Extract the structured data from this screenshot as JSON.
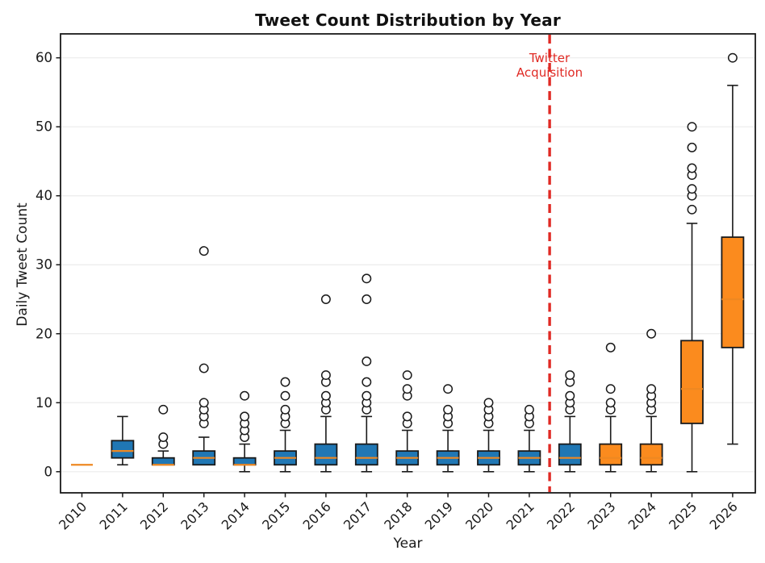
{
  "chart_data": {
    "type": "boxplot",
    "title": "Tweet Count Distribution by Year",
    "xlabel": "Year",
    "ylabel": "Daily Tweet Count",
    "categories": [
      "2010",
      "2011",
      "2012",
      "2013",
      "2014",
      "2015",
      "2016",
      "2017",
      "2018",
      "2019",
      "2020",
      "2021",
      "2022",
      "2023",
      "2024",
      "2025",
      "2026"
    ],
    "y_ticks": [
      0,
      10,
      20,
      30,
      40,
      50,
      60
    ],
    "ylim": [
      -3.1,
      63.5
    ],
    "grid": "horizontal-only",
    "legend": "none",
    "boxes": [
      {
        "year": "2010",
        "period": "pre",
        "whislo": 1,
        "q1": 1,
        "med": 1,
        "q3": 1,
        "whishi": 1,
        "fliers": []
      },
      {
        "year": "2011",
        "period": "pre",
        "whislo": 1,
        "q1": 2,
        "med": 3,
        "q3": 4.5,
        "whishi": 8,
        "fliers": []
      },
      {
        "year": "2012",
        "period": "pre",
        "whislo": 1,
        "q1": 1,
        "med": 1,
        "q3": 2,
        "whishi": 3,
        "fliers": [
          4,
          5,
          9
        ]
      },
      {
        "year": "2013",
        "period": "pre",
        "whislo": 1,
        "q1": 1,
        "med": 2,
        "q3": 3,
        "whishi": 5,
        "fliers": [
          7,
          8,
          9,
          10,
          15,
          32
        ]
      },
      {
        "year": "2014",
        "period": "pre",
        "whislo": 0,
        "q1": 1,
        "med": 1,
        "q3": 2,
        "whishi": 4,
        "fliers": [
          5,
          6,
          7,
          8,
          11
        ]
      },
      {
        "year": "2015",
        "period": "pre",
        "whislo": 0,
        "q1": 1,
        "med": 2,
        "q3": 3,
        "whishi": 6,
        "fliers": [
          7,
          8,
          9,
          11,
          13
        ]
      },
      {
        "year": "2016",
        "period": "pre",
        "whislo": 0,
        "q1": 1,
        "med": 2,
        "q3": 4,
        "whishi": 8,
        "fliers": [
          9,
          10,
          11,
          13,
          14,
          25
        ]
      },
      {
        "year": "2017",
        "period": "pre",
        "whislo": 0,
        "q1": 1,
        "med": 2,
        "q3": 4,
        "whishi": 8,
        "fliers": [
          9,
          10,
          11,
          13,
          16,
          25,
          28
        ]
      },
      {
        "year": "2018",
        "period": "pre",
        "whislo": 0,
        "q1": 1,
        "med": 2,
        "q3": 3,
        "whishi": 6,
        "fliers": [
          7,
          8,
          11,
          12,
          14
        ]
      },
      {
        "year": "2019",
        "period": "pre",
        "whislo": 0,
        "q1": 1,
        "med": 2,
        "q3": 3,
        "whishi": 6,
        "fliers": [
          7,
          8,
          9,
          12
        ]
      },
      {
        "year": "2020",
        "period": "pre",
        "whislo": 0,
        "q1": 1,
        "med": 2,
        "q3": 3,
        "whishi": 6,
        "fliers": [
          7,
          8,
          9,
          10
        ]
      },
      {
        "year": "2021",
        "period": "pre",
        "whislo": 0,
        "q1": 1,
        "med": 2,
        "q3": 3,
        "whishi": 6,
        "fliers": [
          7,
          8,
          9
        ]
      },
      {
        "year": "2022",
        "period": "pre",
        "whislo": 0,
        "q1": 1,
        "med": 2,
        "q3": 4,
        "whishi": 8,
        "fliers": [
          9,
          10,
          11,
          13,
          14
        ]
      },
      {
        "year": "2023",
        "period": "post",
        "whislo": 0,
        "q1": 1,
        "med": 2,
        "q3": 4,
        "whishi": 8,
        "fliers": [
          9,
          10,
          12,
          18
        ]
      },
      {
        "year": "2024",
        "period": "post",
        "whislo": 0,
        "q1": 1,
        "med": 2,
        "q3": 4,
        "whishi": 8,
        "fliers": [
          9,
          10,
          11,
          12,
          20
        ]
      },
      {
        "year": "2025",
        "period": "post",
        "whislo": 0,
        "q1": 7,
        "med": 12,
        "q3": 19,
        "whishi": 36,
        "fliers": [
          38,
          40,
          41,
          43,
          44,
          47,
          50
        ]
      },
      {
        "year": "2026",
        "period": "post",
        "whislo": 4,
        "q1": 18,
        "med": 25,
        "q3": 34,
        "whishi": 56,
        "fliers": [
          60
        ]
      }
    ],
    "event_line": {
      "label_line1": "Twitter",
      "label_line2": "Acquisition",
      "year_position": 2021.5
    },
    "colors": {
      "box_fill_pre": "#2077b4",
      "box_fill_post": "#fb8b1e",
      "median": "#ee8822",
      "box_edge": "#1a1a1a",
      "whisker": "#1a1a1a",
      "flier_fill": "#ffffff",
      "flier_edge": "#1a1a1a",
      "event_line": "#e02a24",
      "annotation_text": "#e02a24",
      "grid": "#ececec",
      "axis": "#1a1a1a",
      "background": "#ffffff"
    }
  }
}
